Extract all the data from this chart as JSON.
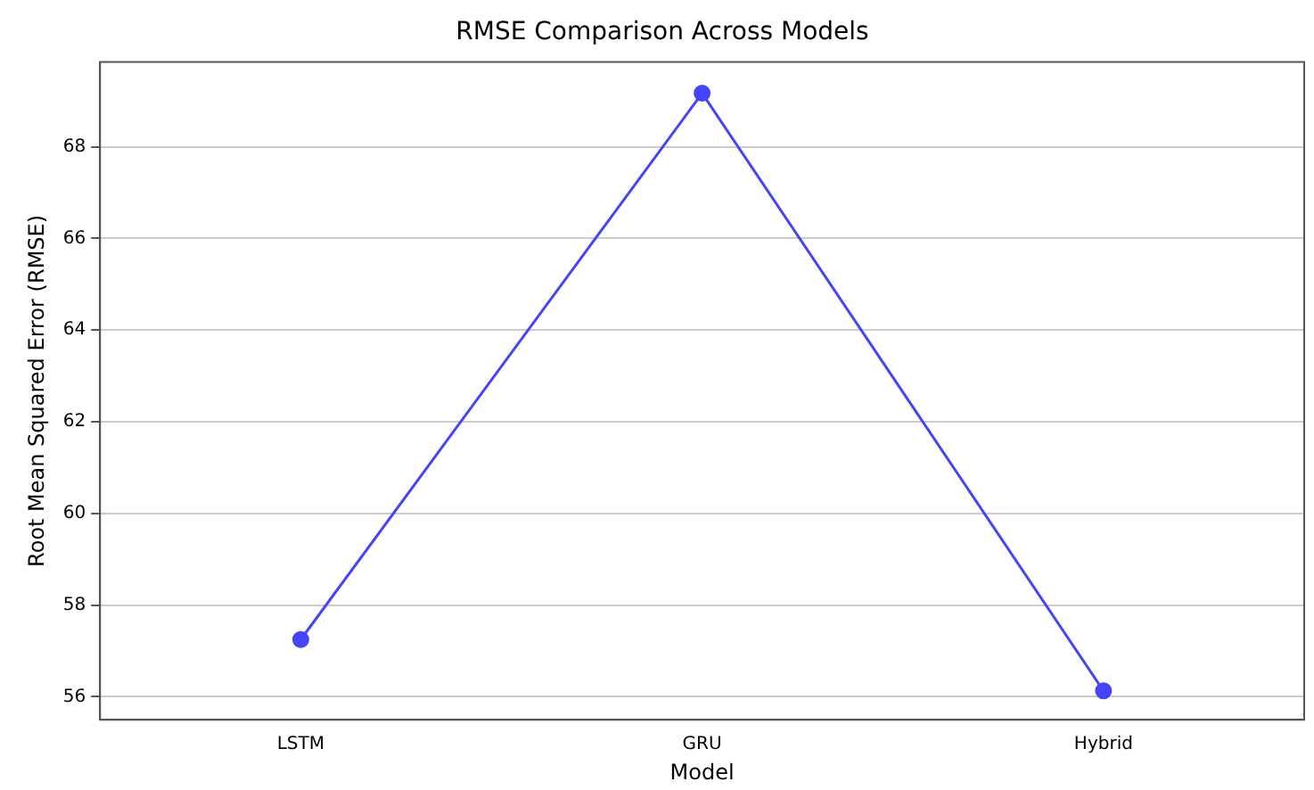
{
  "chart_data": {
    "type": "line",
    "title": "RMSE Comparison Across Models",
    "xlabel": "Model",
    "ylabel": "Root Mean Squared Error (RMSE)",
    "categories": [
      "LSTM",
      "GRU",
      "Hybrid"
    ],
    "series": [
      {
        "color": "#4444ff",
        "values": [
          57.25,
          69.17,
          56.13
        ]
      }
    ],
    "ylim": [
      55.5,
      69.85
    ],
    "yticks": [
      56,
      58,
      60,
      62,
      64,
      66,
      68
    ],
    "grid": "y",
    "marker": "circle",
    "line_style": "solid",
    "legend": false
  }
}
